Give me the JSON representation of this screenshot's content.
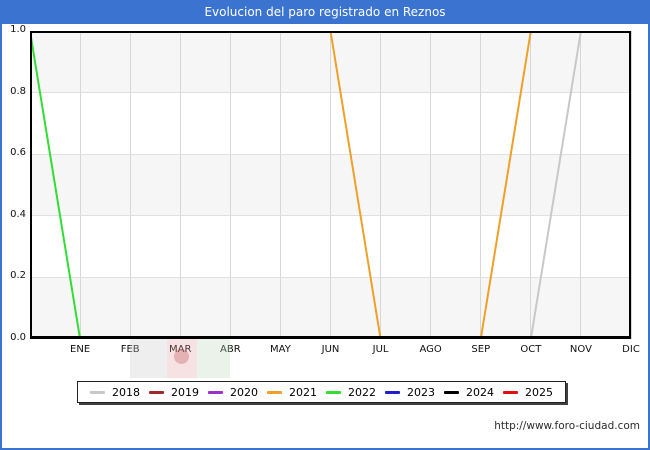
{
  "title": "Evolucion del paro registrado en Reznos",
  "footer": {
    "watermark_url": "http://www.foro-ciudad.com"
  },
  "colors": {
    "accent_blue": "#3a74d0",
    "plot_band_gray": "#f6f6f6",
    "gridline": "#d7d7d7"
  },
  "chart_data": {
    "type": "line",
    "title": "Evolucion del paro registrado en Reznos",
    "xlabel": "",
    "ylabel": "",
    "ylim": [
      0.0,
      1.0
    ],
    "grid": true,
    "legend_position": "bottom",
    "y_tick_labels": [
      "0.0",
      "0.2",
      "0.4",
      "0.6",
      "0.8",
      "1.0"
    ],
    "x_tick_labels": [
      "ENE",
      "FEB",
      "MAR",
      "ABR",
      "MAY",
      "JUN",
      "JUL",
      "AGO",
      "SEP",
      "OCT",
      "NOV",
      "DIC"
    ],
    "x_note": "month index units: 0 = left edge of plot, ENE tick = 1, DIC tick = 12",
    "series": [
      {
        "name": "2018",
        "color": "#c8c8c8",
        "points": [
          [
            10,
            0.0
          ],
          [
            11,
            1.0
          ]
        ]
      },
      {
        "name": "2019",
        "color": "#9e2b2b",
        "points": []
      },
      {
        "name": "2020",
        "color": "#9933cc",
        "points": []
      },
      {
        "name": "2021",
        "color": "#f0a028",
        "points": [
          [
            6,
            1.0
          ],
          [
            7,
            0.0
          ],
          [
            9,
            0.0
          ],
          [
            10,
            1.0
          ]
        ]
      },
      {
        "name": "2022",
        "color": "#33dd33",
        "points": [
          [
            0,
            1.0
          ],
          [
            1,
            0.0
          ]
        ]
      },
      {
        "name": "2023",
        "color": "#1f1fd0",
        "points": []
      },
      {
        "name": "2024",
        "color": "#000000",
        "points": []
      },
      {
        "name": "2025",
        "color": "#e01010",
        "points": []
      }
    ]
  }
}
